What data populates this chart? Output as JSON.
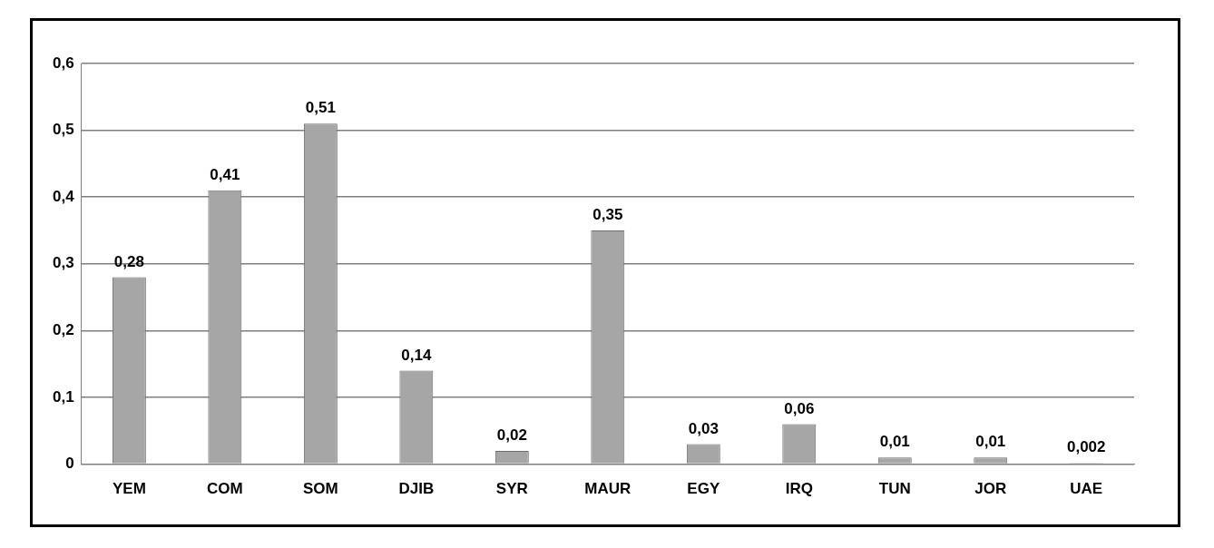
{
  "chart_data": {
    "type": "bar",
    "categories": [
      "YEM",
      "COM",
      "SOM",
      "DJIB",
      "SYR",
      "MAUR",
      "EGY",
      "IRQ",
      "TUN",
      "JOR",
      "UAE"
    ],
    "values": [
      0.28,
      0.41,
      0.51,
      0.14,
      0.02,
      0.35,
      0.03,
      0.06,
      0.01,
      0.01,
      0.002
    ],
    "value_labels": [
      "0,28",
      "0,41",
      "0,51",
      "0,14",
      "0,02",
      "0,35",
      "0,03",
      "0,06",
      "0,01",
      "0,01",
      "0,002"
    ],
    "color": "#a6a6a6",
    "ylim": [
      0,
      0.6
    ],
    "yticks": [
      {
        "value": 0,
        "label": "0"
      },
      {
        "value": 0.1,
        "label": "0,1"
      },
      {
        "value": 0.2,
        "label": "0,2"
      },
      {
        "value": 0.3,
        "label": "0,3"
      },
      {
        "value": 0.4,
        "label": "0,4"
      },
      {
        "value": 0.5,
        "label": "0,5"
      },
      {
        "value": 0.6,
        "label": "0,6"
      }
    ],
    "grid": "y"
  }
}
